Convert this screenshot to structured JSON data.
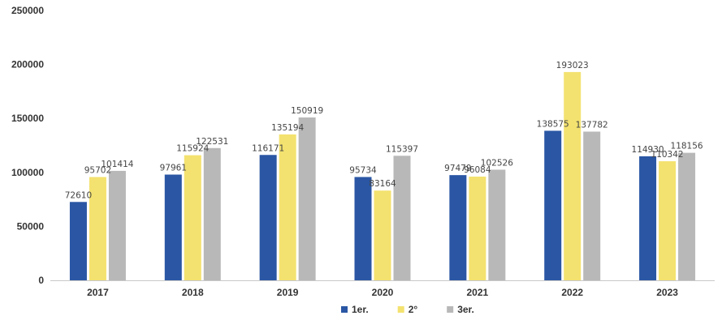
{
  "chart_data": {
    "type": "bar",
    "categories": [
      "2017",
      "2018",
      "2019",
      "2020",
      "2021",
      "2022",
      "2023"
    ],
    "series": [
      {
        "name": "1er.",
        "color": "#2a56a4",
        "values": [
          72610,
          97961,
          116171,
          95734,
          97479,
          138575,
          114930
        ]
      },
      {
        "name": "2°",
        "color": "#f3e26f",
        "values": [
          95702,
          115924,
          135194,
          83164,
          96084,
          193023,
          110342
        ]
      },
      {
        "name": "3er.",
        "color": "#b8b8b8",
        "values": [
          101414,
          122531,
          150919,
          115397,
          102526,
          137782,
          118156
        ]
      }
    ],
    "data_labels": [
      [
        "72610",
        "97961",
        "116171",
        "95734",
        "97479",
        "138575",
        "114930"
      ],
      [
        "95702",
        "115924",
        "135194",
        "83164",
        "96084",
        "193023",
        "110342"
      ],
      [
        "101414",
        "122531",
        "150919",
        "115397",
        "102526",
        "137782",
        "118156"
      ]
    ],
    "yticks": [
      "0",
      "50000",
      "100000",
      "150000",
      "200000",
      "250000"
    ],
    "ylim": [
      0,
      250000
    ],
    "grid": false,
    "legend": "bottom-center",
    "title": "",
    "xlabel": "",
    "ylabel": ""
  }
}
